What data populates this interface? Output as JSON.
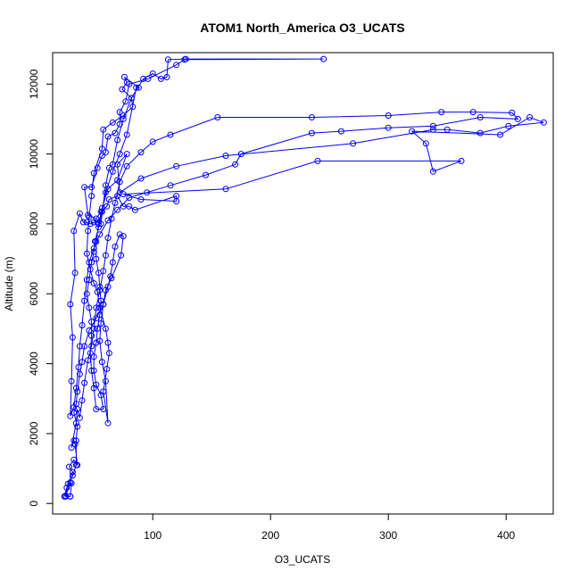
{
  "chart_data": {
    "type": "line",
    "title": "ATOM1 North_America O3_UCATS",
    "xlabel": "O3_UCATS",
    "ylabel": "Altitude (m)",
    "xlim": [
      15,
      440
    ],
    "ylim": [
      -300,
      12900
    ],
    "x_ticks": [
      100,
      200,
      300,
      400
    ],
    "y_ticks": [
      0,
      2000,
      4000,
      6000,
      8000,
      10000,
      12000
    ],
    "grid": false,
    "legend": "none",
    "colors": {
      "series": "#0000ff",
      "axes": "#000000"
    },
    "marker": "open-circle",
    "series": [
      {
        "points": [
          [
            25,
            200
          ],
          [
            27,
            450
          ],
          [
            31,
            580
          ],
          [
            30,
            200
          ],
          [
            26,
            220
          ],
          [
            28,
            560
          ],
          [
            32,
            900
          ],
          [
            29,
            1050
          ],
          [
            33,
            1250
          ],
          [
            36,
            1100
          ],
          [
            34,
            1700
          ],
          [
            33,
            1800
          ],
          [
            31,
            1600
          ],
          [
            35,
            2300
          ],
          [
            36,
            2700
          ],
          [
            38,
            2450
          ],
          [
            40,
            2950
          ],
          [
            42,
            3450
          ],
          [
            45,
            4100
          ],
          [
            48,
            4500
          ],
          [
            50,
            5000
          ],
          [
            52,
            5600
          ],
          [
            55,
            6100
          ],
          [
            58,
            6650
          ],
          [
            60,
            7100
          ],
          [
            62,
            7600
          ],
          [
            65,
            8150
          ],
          [
            68,
            8600
          ],
          [
            72,
            9200
          ],
          [
            78,
            9650
          ],
          [
            90,
            10050
          ],
          [
            100,
            10350
          ],
          [
            115,
            10550
          ],
          [
            155,
            11050
          ],
          [
            235,
            11050
          ],
          [
            300,
            11100
          ],
          [
            345,
            11200
          ],
          [
            372,
            11200
          ],
          [
            405,
            11180
          ],
          [
            410,
            11000
          ],
          [
            378,
            11050
          ],
          [
            338,
            10800
          ],
          [
            300,
            10750
          ],
          [
            260,
            10650
          ],
          [
            235,
            10600
          ],
          [
            175,
            10000
          ],
          [
            170,
            9700
          ],
          [
            145,
            9400
          ],
          [
            115,
            9100
          ],
          [
            95,
            8900
          ],
          [
            80,
            8750
          ],
          [
            70,
            8400
          ],
          [
            62,
            8100
          ],
          [
            55,
            7700
          ],
          [
            50,
            7300
          ],
          [
            46,
            6900
          ],
          [
            44,
            6400
          ],
          [
            42,
            5800
          ],
          [
            40,
            5100
          ],
          [
            38,
            4500
          ],
          [
            37,
            3900
          ],
          [
            35,
            3300
          ],
          [
            33,
            2750
          ],
          [
            30,
            2500
          ],
          [
            31,
            3500
          ],
          [
            32,
            4750
          ],
          [
            30,
            5700
          ],
          [
            34,
            6600
          ],
          [
            33,
            7800
          ],
          [
            38,
            8300
          ],
          [
            41,
            8050
          ],
          [
            44,
            8050
          ],
          [
            47,
            8000
          ],
          [
            50,
            8050
          ],
          [
            53,
            8050
          ],
          [
            56,
            8000
          ],
          [
            60,
            9100
          ],
          [
            63,
            9600
          ],
          [
            66,
            9700
          ],
          [
            70,
            10400
          ],
          [
            75,
            11000
          ],
          [
            82,
            11600
          ],
          [
            92,
            12150
          ],
          [
            100,
            12300
          ],
          [
            107,
            12150
          ],
          [
            112,
            12200
          ],
          [
            113,
            12700
          ],
          [
            128,
            12720
          ],
          [
            245,
            12720
          ],
          [
            127,
            12700
          ],
          [
            120,
            12550
          ],
          [
            96,
            12150
          ],
          [
            80,
            12000
          ],
          [
            77,
            11500
          ],
          [
            72,
            11200
          ],
          [
            72,
            10850
          ],
          [
            68,
            10600
          ],
          [
            62,
            10500
          ],
          [
            60,
            10050
          ],
          [
            57,
            9950
          ],
          [
            53,
            9600
          ],
          [
            48,
            9050
          ],
          [
            42,
            9050
          ],
          [
            45,
            8250
          ],
          [
            52,
            8150
          ],
          [
            56,
            8350
          ],
          [
            61,
            8500
          ],
          [
            63,
            8700
          ],
          [
            70,
            8800
          ],
          [
            75,
            8500
          ],
          [
            80,
            8500
          ],
          [
            85,
            8400
          ],
          [
            120,
            8800
          ],
          [
            120,
            8650
          ],
          [
            90,
            8700
          ],
          [
            75,
            8850
          ],
          [
            162,
            9000
          ],
          [
            240,
            9800
          ],
          [
            362,
            9800
          ],
          [
            338,
            9500
          ],
          [
            332,
            10300
          ],
          [
            320,
            10650
          ],
          [
            395,
            10550
          ],
          [
            420,
            11050
          ],
          [
            432,
            10900
          ],
          [
            402,
            10800
          ],
          [
            378,
            10600
          ],
          [
            350,
            10700
          ],
          [
            338,
            10700
          ],
          [
            270,
            10300
          ],
          [
            162,
            9950
          ],
          [
            120,
            9650
          ],
          [
            90,
            9300
          ],
          [
            72,
            8900
          ],
          [
            70,
            9700
          ],
          [
            78,
            10000
          ],
          [
            70,
            9250
          ],
          [
            62,
            9000
          ],
          [
            57,
            8450
          ],
          [
            54,
            8000
          ],
          [
            52,
            7500
          ],
          [
            52,
            7000
          ],
          [
            54,
            6600
          ],
          [
            55,
            6200
          ],
          [
            56,
            5800
          ],
          [
            55,
            5400
          ],
          [
            53,
            5000
          ],
          [
            52,
            4600
          ],
          [
            50,
            4200
          ],
          [
            50,
            3800
          ],
          [
            52,
            3400
          ],
          [
            56,
            3100
          ],
          [
            58,
            2700
          ],
          [
            52,
            2700
          ],
          [
            50,
            3300
          ],
          [
            48,
            3800
          ],
          [
            47,
            4300
          ],
          [
            48,
            4800
          ],
          [
            48,
            5200
          ],
          [
            46,
            5600
          ],
          [
            44,
            6000
          ],
          [
            46,
            6400
          ],
          [
            48,
            6900
          ],
          [
            50,
            7200
          ],
          [
            51,
            7500
          ],
          [
            54,
            7900
          ],
          [
            57,
            8350
          ],
          [
            60,
            8900
          ],
          [
            66,
            9500
          ],
          [
            72,
            10000
          ],
          [
            78,
            10550
          ],
          [
            86,
            11900
          ],
          [
            88,
            11900
          ],
          [
            76,
            12200
          ],
          [
            78,
            12050
          ],
          [
            74,
            11850
          ],
          [
            82,
            11600
          ],
          [
            83,
            11350
          ],
          [
            75,
            11100
          ],
          [
            66,
            10900
          ],
          [
            58,
            10700
          ],
          [
            57,
            10150
          ],
          [
            50,
            9450
          ],
          [
            48,
            8800
          ],
          [
            46,
            8200
          ],
          [
            45,
            7800
          ],
          [
            44,
            7150
          ],
          [
            47,
            6700
          ],
          [
            50,
            6300
          ],
          [
            53,
            6050
          ],
          [
            55,
            5600
          ],
          [
            60,
            5000
          ],
          [
            62,
            4600
          ],
          [
            63,
            4300
          ],
          [
            61,
            3850
          ],
          [
            58,
            3200
          ],
          [
            62,
            2300
          ],
          [
            60,
            3500
          ],
          [
            57,
            4050
          ],
          [
            55,
            4650
          ],
          [
            56,
            5150
          ],
          [
            58,
            5700
          ],
          [
            62,
            6200
          ],
          [
            64,
            6500
          ],
          [
            66,
            6900
          ],
          [
            68,
            7350
          ],
          [
            72,
            7700
          ],
          [
            75,
            7650
          ],
          [
            73,
            7100
          ],
          [
            65,
            6450
          ],
          [
            60,
            6100
          ],
          [
            58,
            5700
          ],
          [
            52,
            5300
          ],
          [
            46,
            4950
          ],
          [
            42,
            4500
          ],
          [
            40,
            4050
          ],
          [
            38,
            3700
          ],
          [
            36,
            3200
          ],
          [
            35,
            2850
          ],
          [
            33,
            2600
          ],
          [
            36,
            2200
          ],
          [
            35,
            1800
          ],
          [
            35,
            1100
          ],
          [
            30,
            600
          ],
          [
            32,
            800
          ],
          [
            26,
            200
          ],
          [
            30,
            200
          ]
        ]
      }
    ]
  }
}
